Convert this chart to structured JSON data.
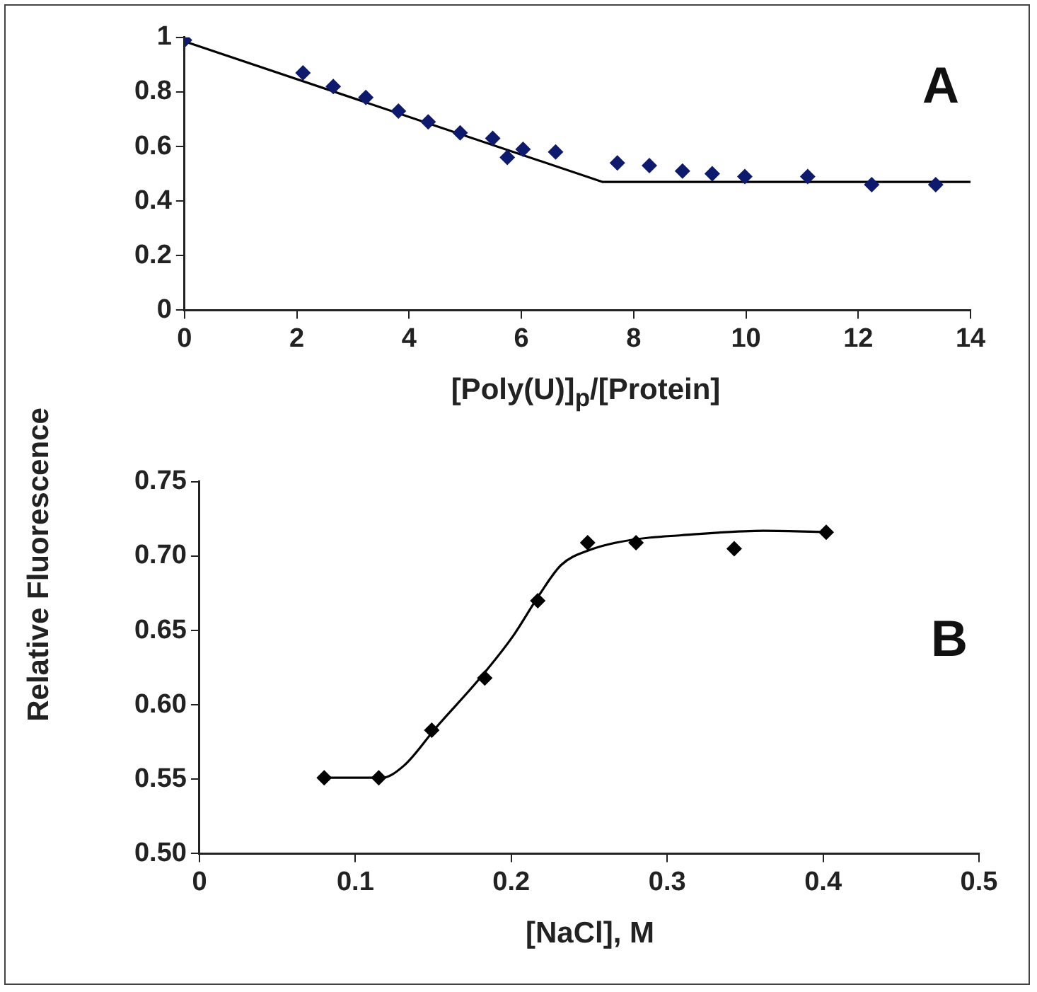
{
  "chart_data": [
    {
      "type": "scatter",
      "xlabel": "[Poly(U)]$_{p}$/[Protein]",
      "ylabel": "Relative Fluorescence",
      "annotations": [
        "A"
      ],
      "grid": false,
      "legend": false,
      "xlim": [
        0,
        14
      ],
      "xticks": [
        0,
        2,
        4,
        6,
        8,
        10,
        12,
        14
      ],
      "ylim": [
        0,
        1
      ],
      "yticks": [
        0,
        0.2,
        0.4,
        0.6,
        0.8,
        1
      ],
      "series": [
        {
          "type": "scatter",
          "marker": "diamond",
          "color": "#0d1a6e",
          "x": [
            0,
            2.11,
            2.65,
            3.23,
            3.81,
            4.34,
            4.91,
            5.49,
            5.75,
            6.03,
            6.61,
            7.71,
            8.28,
            8.87,
            9.4,
            9.98,
            11.1,
            12.24,
            13.38
          ],
          "values": [
            0.99,
            0.87,
            0.82,
            0.78,
            0.73,
            0.69,
            0.65,
            0.63,
            0.56,
            0.59,
            0.58,
            0.54,
            0.53,
            0.51,
            0.5,
            0.49,
            0.49,
            0.46,
            0.46
          ]
        },
        {
          "type": "line",
          "marker": "none",
          "color": "#000000",
          "x": [
            0,
            7.45,
            14
          ],
          "values": [
            0.985,
            0.47,
            0.47
          ]
        }
      ]
    },
    {
      "type": "scatter",
      "xlabel": "[NaCl], M",
      "annotations": [
        "B"
      ],
      "grid": false,
      "legend": false,
      "xlim": [
        0,
        0.5
      ],
      "xticks": [
        0,
        0.1,
        0.2,
        0.3,
        0.4,
        0.5
      ],
      "ylim": [
        0.5,
        0.75
      ],
      "yticks": [
        {
          "value": 0.5,
          "label": "0.50"
        },
        {
          "value": 0.55,
          "label": "0.55"
        },
        {
          "value": 0.6,
          "label": "0.60"
        },
        {
          "value": 0.65,
          "label": "0.65"
        },
        {
          "value": 0.7,
          "label": "0.70"
        },
        {
          "value": 0.75,
          "label": "0.75"
        }
      ],
      "series": [
        {
          "type": "scatter",
          "marker": "diamond",
          "color": "#000000",
          "x": [
            0.08,
            0.115,
            0.149,
            0.183,
            0.217,
            0.249,
            0.28,
            0.343,
            0.402
          ],
          "values": [
            0.551,
            0.551,
            0.583,
            0.618,
            0.67,
            0.709,
            0.709,
            0.705,
            0.716
          ]
        },
        {
          "type": "line",
          "marker": "none",
          "color": "#000000",
          "x": [
            0.08,
            0.117,
            0.131,
            0.152,
            0.18,
            0.201,
            0.218,
            0.232,
            0.25,
            0.278,
            0.309,
            0.362,
            0.406
          ],
          "values": [
            0.551,
            0.551,
            0.559,
            0.585,
            0.618,
            0.646,
            0.674,
            0.694,
            0.704,
            0.711,
            0.714,
            0.717,
            0.716
          ]
        }
      ]
    }
  ]
}
